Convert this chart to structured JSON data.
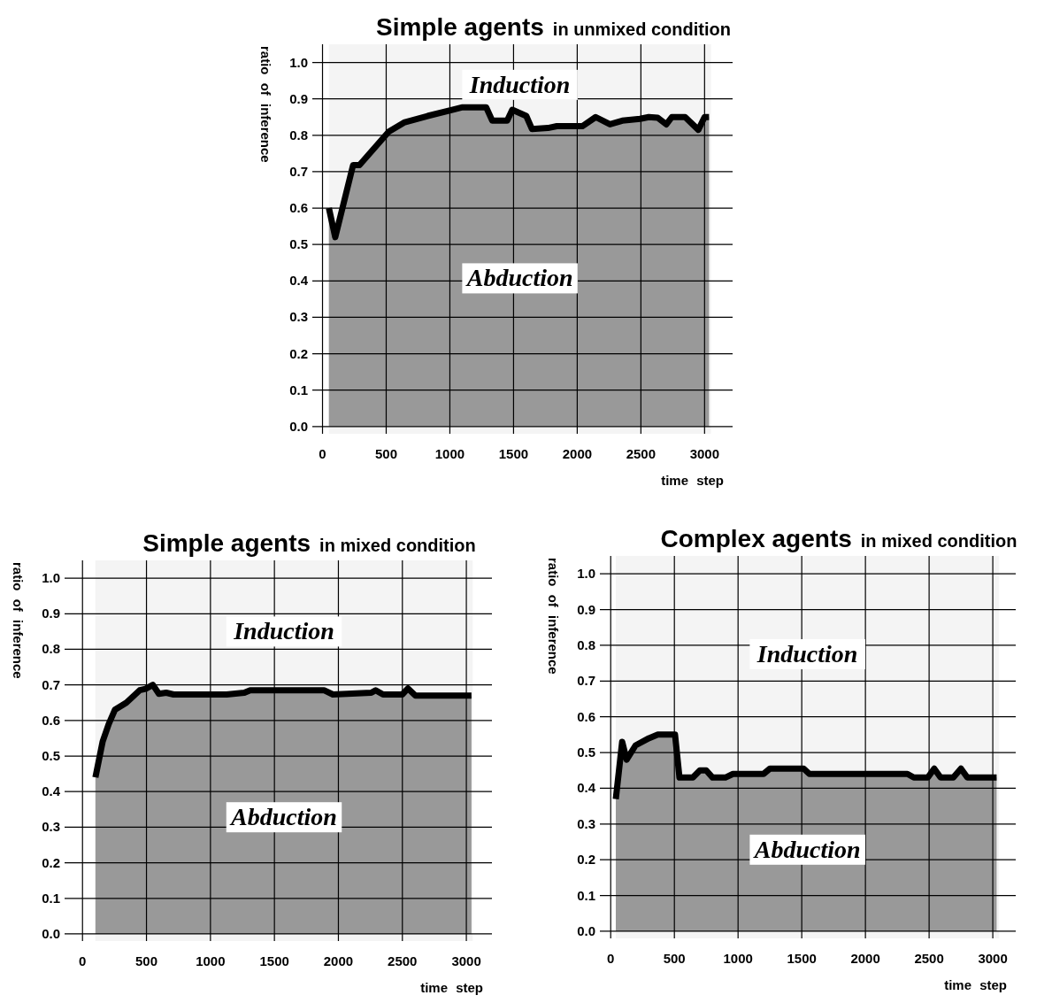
{
  "chart_data": [
    {
      "type": "area",
      "title": "Simple agents",
      "subtitle": "in unmixed condition",
      "xlabel": "time step",
      "ylabel": "ratio of inference",
      "xlim": [
        -80,
        3220
      ],
      "ylim": [
        -0.02,
        1.05
      ],
      "xticks": [
        0,
        500,
        1000,
        1500,
        2000,
        2500,
        3000
      ],
      "yticks": [
        {
          "value": 0,
          "label": "0.0"
        },
        {
          "value": 0.1,
          "label": "0.1"
        },
        {
          "value": 0.2,
          "label": "0.2"
        },
        {
          "value": 0.3,
          "label": "0.3"
        },
        {
          "value": 0.4,
          "label": "0.4"
        },
        {
          "value": 0.5,
          "label": "0.5"
        },
        {
          "value": 0.6,
          "label": "0.6"
        },
        {
          "value": 0.7,
          "label": "0.7"
        },
        {
          "value": 0.8,
          "label": "0.8"
        },
        {
          "value": 0.9,
          "label": "0.9"
        },
        {
          "value": 1,
          "label": "1.0"
        }
      ],
      "grid": true,
      "bands": [
        {
          "axis": "x",
          "from": 50,
          "to": 3050,
          "color": "#f4f4f4"
        }
      ],
      "annotations": [
        "Induction",
        "Abduction"
      ],
      "series": [
        {
          "color": "#999999",
          "x": [
            50,
            100,
            240,
            290,
            520,
            640,
            825,
            1100,
            1285,
            1333,
            1450,
            1490,
            1600,
            1645,
            1770,
            1840,
            2040,
            2145,
            2257,
            2354,
            2493,
            2562,
            2632,
            2700,
            2743,
            2847,
            2951,
            3000,
            3035
          ],
          "values": [
            0.6,
            0.52,
            0.718,
            0.718,
            0.81,
            0.835,
            0.853,
            0.877,
            0.877,
            0.84,
            0.84,
            0.87,
            0.853,
            0.817,
            0.82,
            0.825,
            0.825,
            0.85,
            0.83,
            0.84,
            0.845,
            0.85,
            0.848,
            0.83,
            0.85,
            0.85,
            0.815,
            0.85,
            0.85
          ]
        }
      ]
    },
    {
      "type": "area",
      "title": "Simple agents",
      "subtitle": "in mixed condition",
      "xlabel": "time step",
      "ylabel": "ratio of inference",
      "xlim": [
        -140,
        3200
      ],
      "ylim": [
        -0.02,
        1.05
      ],
      "xticks": [
        0,
        500,
        1000,
        1500,
        2000,
        2500,
        3000
      ],
      "yticks": [
        {
          "value": 0,
          "label": "0.0"
        },
        {
          "value": 0.1,
          "label": "0.1"
        },
        {
          "value": 0.2,
          "label": "0.2"
        },
        {
          "value": 0.3,
          "label": "0.3"
        },
        {
          "value": 0.4,
          "label": "0.4"
        },
        {
          "value": 0.5,
          "label": "0.5"
        },
        {
          "value": 0.6,
          "label": "0.6"
        },
        {
          "value": 0.7,
          "label": "0.7"
        },
        {
          "value": 0.8,
          "label": "0.8"
        },
        {
          "value": 0.9,
          "label": "0.9"
        },
        {
          "value": 1,
          "label": "1.0"
        }
      ],
      "grid": true,
      "bands": [
        {
          "axis": "x",
          "from": 100,
          "to": 3050,
          "color": "#f4f4f4"
        }
      ],
      "annotations": [
        "Induction",
        "Abduction"
      ],
      "series": [
        {
          "color": "#999999",
          "x": [
            101,
            157,
            205,
            253,
            343,
            447,
            493,
            550,
            597,
            654,
            712,
            1127,
            1265,
            1311,
            1887,
            1957,
            2257,
            2291,
            2349,
            2499,
            2544,
            2602,
            3040
          ],
          "values": [
            0.44,
            0.54,
            0.59,
            0.63,
            0.65,
            0.685,
            0.689,
            0.7,
            0.675,
            0.678,
            0.673,
            0.673,
            0.678,
            0.685,
            0.685,
            0.673,
            0.678,
            0.685,
            0.673,
            0.673,
            0.69,
            0.67,
            0.67
          ]
        }
      ]
    },
    {
      "type": "area",
      "title": "Complex agents",
      "subtitle": "in mixed condition",
      "xlabel": "time step",
      "ylabel": "ratio of inference",
      "xlim": [
        -85,
        3180
      ],
      "ylim": [
        -0.02,
        1.05
      ],
      "xticks": [
        0,
        500,
        1000,
        1500,
        2000,
        2500,
        3000
      ],
      "yticks": [
        {
          "value": 0,
          "label": "0.0"
        },
        {
          "value": 0.1,
          "label": "0.1"
        },
        {
          "value": 0.2,
          "label": "0.2"
        },
        {
          "value": 0.3,
          "label": "0.3"
        },
        {
          "value": 0.4,
          "label": "0.4"
        },
        {
          "value": 0.5,
          "label": "0.5"
        },
        {
          "value": 0.6,
          "label": "0.6"
        },
        {
          "value": 0.7,
          "label": "0.7"
        },
        {
          "value": 0.8,
          "label": "0.8"
        },
        {
          "value": 0.9,
          "label": "0.9"
        },
        {
          "value": 1,
          "label": "1.0"
        }
      ],
      "grid": true,
      "bands": [
        {
          "axis": "x",
          "from": 40,
          "to": 3050,
          "color": "#f4f4f4"
        }
      ],
      "annotations": [
        "Induction",
        "Abduction"
      ],
      "series": [
        {
          "color": "#999999",
          "x": [
            40,
            90,
            125,
            195,
            300,
            370,
            505,
            540,
            645,
            700,
            750,
            800,
            900,
            960,
            1200,
            1250,
            1515,
            1560,
            2330,
            2380,
            2490,
            2540,
            2590,
            2690,
            2750,
            2800,
            3030
          ],
          "values": [
            0.37,
            0.53,
            0.48,
            0.52,
            0.54,
            0.55,
            0.55,
            0.43,
            0.43,
            0.45,
            0.45,
            0.43,
            0.43,
            0.44,
            0.44,
            0.455,
            0.455,
            0.44,
            0.44,
            0.43,
            0.43,
            0.455,
            0.43,
            0.43,
            0.455,
            0.43,
            0.43
          ]
        }
      ]
    }
  ]
}
